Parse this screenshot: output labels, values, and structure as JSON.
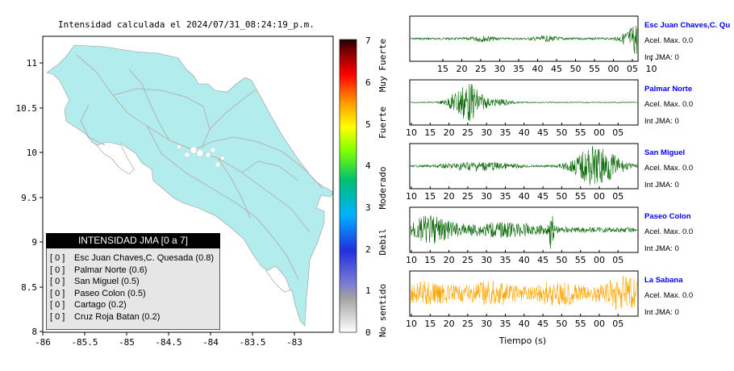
{
  "map": {
    "title": "Intensidad calculada el 2024/07/31_08:24:19_p.m.",
    "x_ticks": [
      "-86",
      "-85.5",
      "-85",
      "-84.5",
      "-84",
      "-83.5",
      "-83"
    ],
    "y_ticks": [
      "11",
      "10.5",
      "10",
      "9.5",
      "9",
      "8.5",
      "8"
    ],
    "land_color": "#b3ecec",
    "road_color": "#b3b3b3"
  },
  "colorbar": {
    "ticks": [
      "0",
      "1",
      "2",
      "3",
      "4",
      "5",
      "6",
      "7"
    ],
    "categories": [
      "No sentido",
      "Debil",
      "Moderado",
      "Fuerte",
      "Muy Fuerte"
    ]
  },
  "legend": {
    "title": "INTENSIDAD JMA [0 a 7]",
    "items": [
      {
        "level": "[ 0 ]",
        "station": "Esc Juan Chaves,C. Quesada (0.8)"
      },
      {
        "level": "[ 0 ]",
        "station": "Palmar Norte (0.6)"
      },
      {
        "level": "[ 0 ]",
        "station": "San Miguel (0.5)"
      },
      {
        "level": "[ 0 ]",
        "station": "Paseo Colon (0.5)"
      },
      {
        "level": "[ 0 ]",
        "station": "Cartago (0.2)"
      },
      {
        "level": "[ 0 ]",
        "station": "Cruz Roja Batan (0.2)"
      }
    ]
  },
  "waveforms": {
    "xlabel": "Tiempo (s)",
    "panels": [
      {
        "station": "Esc Juan Chaves,C. Qu",
        "accel": "Acel. Max. 0.0",
        "jma": "Int JMA: 0",
        "ticks": [
          "15",
          "20",
          "25",
          "30",
          "35",
          "40",
          "45",
          "50",
          "55",
          "00",
          "05",
          "10"
        ],
        "color": "#006400"
      },
      {
        "station": "Palmar Norte",
        "accel": "Acel. Max. 0.0",
        "jma": "Int JMA: 0",
        "ticks": [
          "10",
          "15",
          "20",
          "25",
          "30",
          "35",
          "40",
          "45",
          "50",
          "55",
          "00",
          "05"
        ],
        "color": "#006400"
      },
      {
        "station": "San Miguel",
        "accel": "Acel. Max. 0.0",
        "jma": "Int JMA: 0",
        "ticks": [
          "10",
          "15",
          "20",
          "25",
          "30",
          "35",
          "40",
          "45",
          "50",
          "55",
          "00",
          "05"
        ],
        "color": "#006400"
      },
      {
        "station": "Paseo Colon",
        "accel": "Acel. Max. 0.0",
        "jma": "Int JMA: 0",
        "ticks": [
          "10",
          "15",
          "20",
          "25",
          "30",
          "35",
          "40",
          "45",
          "50",
          "55",
          "00",
          "05"
        ],
        "color": "#006400"
      },
      {
        "station": "La Sabana",
        "accel": "Acel. Max. 0.0",
        "jma": "Int JMA: 0",
        "ticks": [
          "10",
          "15",
          "20",
          "25",
          "30",
          "35",
          "40",
          "45",
          "50",
          "55",
          "00",
          "05"
        ],
        "color": "#ffa500"
      }
    ]
  },
  "chart_data": [
    {
      "type": "map",
      "title": "Intensidad calculada el 2024/07/31_08:24:19_p.m.",
      "xlim": [
        -86,
        -82.5
      ],
      "ylim": [
        8,
        11.3
      ],
      "legend_title": "INTENSIDAD JMA [0 a 7]",
      "stations": [
        {
          "name": "Esc Juan Chaves,C. Quesada",
          "intensity": 0.8,
          "class": 0
        },
        {
          "name": "Palmar Norte",
          "intensity": 0.6,
          "class": 0
        },
        {
          "name": "San Miguel",
          "intensity": 0.5,
          "class": 0
        },
        {
          "name": "Paseo Colon",
          "intensity": 0.5,
          "class": 0
        },
        {
          "name": "Cartago",
          "intensity": 0.2,
          "class": 0
        },
        {
          "name": "Cruz Roja Batan",
          "intensity": 0.2,
          "class": 0
        }
      ],
      "colorbar": {
        "range": [
          0,
          7
        ],
        "labels": [
          "No sentido",
          "Debil",
          "Moderado",
          "Fuerte",
          "Muy Fuerte"
        ]
      }
    },
    {
      "type": "line",
      "xlabel": "Tiempo (s)",
      "series": [
        {
          "name": "Esc Juan Chaves,C. Qu",
          "acel_max": 0.0,
          "int_jma": 0
        },
        {
          "name": "Palmar Norte",
          "acel_max": 0.0,
          "int_jma": 0
        },
        {
          "name": "San Miguel",
          "acel_max": 0.0,
          "int_jma": 0
        },
        {
          "name": "Paseo Colon",
          "acel_max": 0.0,
          "int_jma": 0
        },
        {
          "name": "La Sabana",
          "acel_max": 0.0,
          "int_jma": 0
        }
      ]
    }
  ]
}
